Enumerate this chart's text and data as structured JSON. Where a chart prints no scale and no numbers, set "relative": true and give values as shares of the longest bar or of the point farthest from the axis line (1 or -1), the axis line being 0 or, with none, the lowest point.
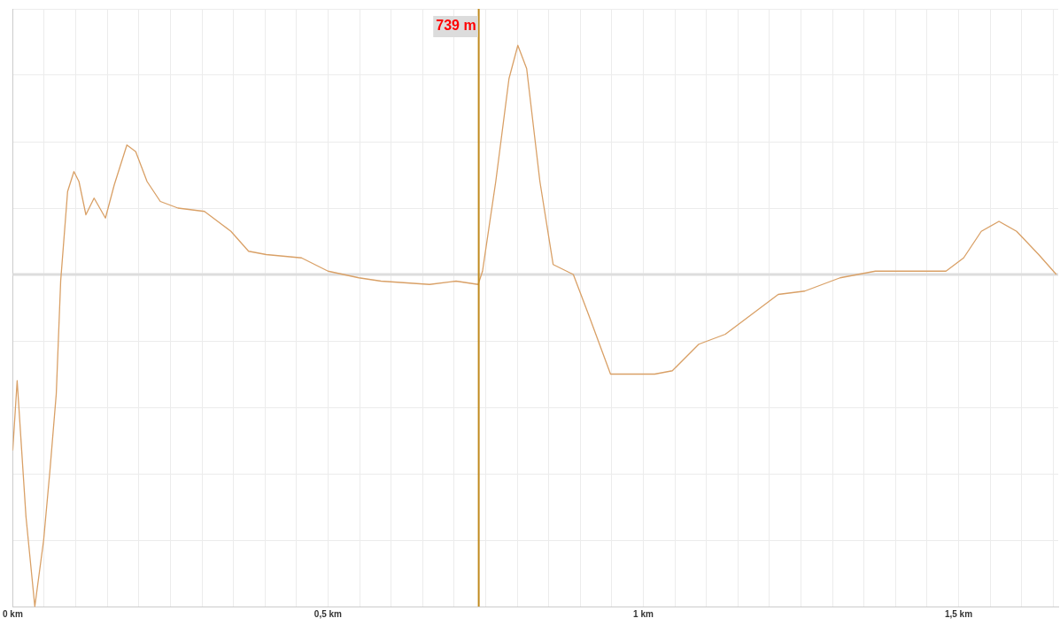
{
  "chart_data": {
    "type": "line",
    "relative": true,
    "grid": true,
    "legend": false,
    "marker": "none",
    "line_style": "solid",
    "xlim": [
      0,
      1.658
    ],
    "xticks": [
      {
        "value": 0,
        "label": "0 km"
      },
      {
        "value": 0.05,
        "label": null
      },
      {
        "value": 0.1,
        "label": null
      },
      {
        "value": 0.15,
        "label": null
      },
      {
        "value": 0.2,
        "label": null
      },
      {
        "value": 0.25,
        "label": null
      },
      {
        "value": 0.3,
        "label": null
      },
      {
        "value": 0.35,
        "label": null
      },
      {
        "value": 0.4,
        "label": null
      },
      {
        "value": 0.45,
        "label": null
      },
      {
        "value": 0.5,
        "label": "0,5 km"
      },
      {
        "value": 0.55,
        "label": null
      },
      {
        "value": 0.6,
        "label": null
      },
      {
        "value": 0.65,
        "label": null
      },
      {
        "value": 0.7,
        "label": null
      },
      {
        "value": 0.75,
        "label": null
      },
      {
        "value": 0.8,
        "label": null
      },
      {
        "value": 0.85,
        "label": null
      },
      {
        "value": 0.9,
        "label": null
      },
      {
        "value": 0.95,
        "label": null
      },
      {
        "value": 1,
        "label": "1 km"
      },
      {
        "value": 1.05,
        "label": null
      },
      {
        "value": 1.1,
        "label": null
      },
      {
        "value": 1.15,
        "label": null
      },
      {
        "value": 1.2,
        "label": null
      },
      {
        "value": 1.25,
        "label": null
      },
      {
        "value": 1.3,
        "label": null
      },
      {
        "value": 1.35,
        "label": null
      },
      {
        "value": 1.4,
        "label": null
      },
      {
        "value": 1.45,
        "label": null
      },
      {
        "value": 1.5,
        "label": "1,5 km"
      },
      {
        "value": 1.55,
        "label": null
      },
      {
        "value": 1.6,
        "label": null
      },
      {
        "value": 1.65,
        "label": null
      }
    ],
    "x": [
      0,
      0.007,
      0.021,
      0.035,
      0.049,
      0.059,
      0.069,
      0.076,
      0.087,
      0.097,
      0.105,
      0.116,
      0.129,
      0.147,
      0.161,
      0.181,
      0.195,
      0.213,
      0.234,
      0.262,
      0.304,
      0.346,
      0.374,
      0.402,
      0.458,
      0.5,
      0.549,
      0.584,
      0.661,
      0.703,
      0.738,
      0.745,
      0.766,
      0.787,
      0.801,
      0.815,
      0.836,
      0.857,
      0.889,
      0.913,
      0.948,
      0.976,
      1.018,
      1.046,
      1.088,
      1.13,
      1.172,
      1.214,
      1.256,
      1.312,
      1.368,
      1.48,
      1.508,
      1.536,
      1.564,
      1.592,
      1.627,
      1.655
    ],
    "series": [
      {
        "color": "#d9a066",
        "values": [
          -0.53,
          -0.32,
          -0.73,
          -1,
          -0.8,
          -0.59,
          -0.36,
          -0.02,
          0.25,
          0.31,
          0.28,
          0.18,
          0.23,
          0.17,
          0.27,
          0.39,
          0.37,
          0.28,
          0.22,
          0.2,
          0.19,
          0.13,
          0.07,
          0.06,
          0.05,
          0.01,
          -0.01,
          -0.02,
          -0.03,
          -0.02,
          -0.03,
          0.01,
          0.28,
          0.59,
          0.69,
          0.62,
          0.28,
          0.03,
          0,
          -0.12,
          -0.3,
          -0.3,
          -0.3,
          -0.29,
          -0.21,
          -0.18,
          -0.12,
          -0.06,
          -0.05,
          -0.01,
          0.01,
          0.01,
          0.05,
          0.13,
          0.16,
          0.13,
          0.06,
          0
        ]
      }
    ],
    "ref_lines": [
      {
        "axis": "x",
        "value": 0.739,
        "label": "739 m",
        "color": "#c08a1e"
      }
    ]
  }
}
